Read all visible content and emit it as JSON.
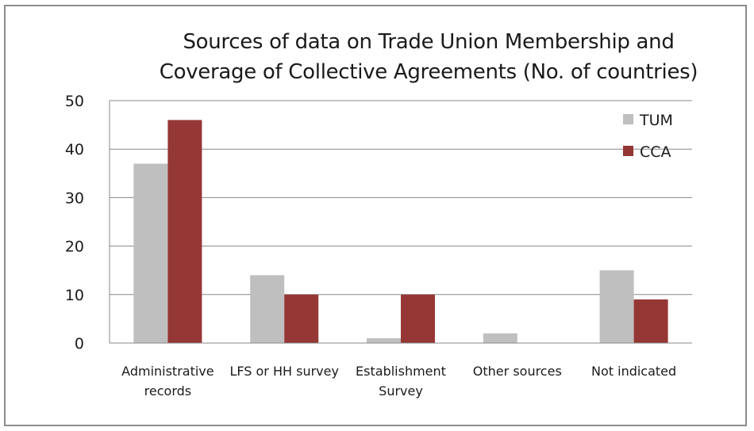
{
  "chart_data": {
    "type": "bar",
    "title_lines": [
      "Sources of data on Trade Union Membership and",
      "Coverage of Collective Agreements (No. of countries)"
    ],
    "categories": [
      [
        "Administrative",
        "records"
      ],
      [
        "LFS or HH survey"
      ],
      [
        "Establishment",
        "Survey"
      ],
      [
        "Other sources"
      ],
      [
        "Not indicated"
      ]
    ],
    "series": [
      {
        "name": "TUM",
        "color": "#bfbfbf",
        "values": [
          37,
          14,
          1,
          2,
          15
        ]
      },
      {
        "name": "CCA",
        "color": "#953735",
        "values": [
          46,
          10,
          10,
          0,
          9
        ]
      }
    ],
    "ylim": [
      0,
      50
    ],
    "yticks": [
      0,
      10,
      20,
      30,
      40,
      50
    ],
    "grid": true,
    "legend": "top-right"
  }
}
